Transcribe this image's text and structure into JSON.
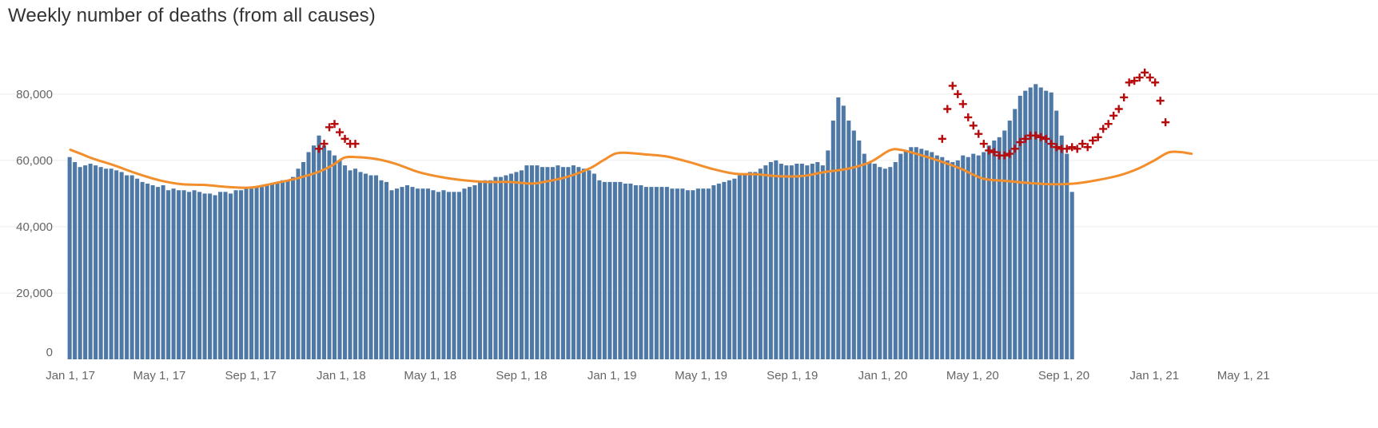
{
  "chart_data": {
    "type": "bar",
    "title": "Weekly number of deaths (from all causes)",
    "xlabel": "",
    "ylabel": "",
    "x_tick_labels": [
      "Jan 1, 17",
      "May 1, 17",
      "Sep 1, 17",
      "Jan 1, 18",
      "May 1, 18",
      "Sep 1, 18",
      "Jan 1, 19",
      "May 1, 19",
      "Sep 1, 19",
      "Jan 1, 20",
      "May 1, 20",
      "Sep 1, 20",
      "Jan 1, 21",
      "May 1, 21"
    ],
    "y_tick_labels": [
      "0",
      "20,000",
      "40,000",
      "60,000",
      "80,000"
    ],
    "y_ticks": [
      0,
      20000,
      40000,
      60000,
      80000
    ],
    "ylim": [
      0,
      92000
    ],
    "x_range": [
      "2016-12-19",
      "2021-05-10"
    ],
    "grid": true,
    "colors": {
      "bars": "#4e79a7",
      "expected_line": "#f28e2b",
      "excess_markers": "#b70a0a",
      "gridline": "#ececec",
      "text": "#333333",
      "tick_text": "#666666"
    },
    "series": [
      {
        "kind": "bar",
        "week_start": "2016-12-31",
        "interval_days": 7,
        "values": [
          61000,
          59500,
          58000,
          58500,
          59000,
          58500,
          58000,
          57500,
          57500,
          57000,
          56500,
          55500,
          55500,
          54500,
          53500,
          53000,
          52500,
          52000,
          52500,
          51000,
          51500,
          51000,
          51000,
          50500,
          51000,
          50500,
          50000,
          50000,
          49500,
          50500,
          50500,
          50000,
          51000,
          51000,
          51500,
          51500,
          52000,
          52000,
          52500,
          53000,
          53500,
          54000,
          54000,
          55000,
          57500,
          59500,
          62500,
          64500,
          67500,
          64500,
          63000,
          61500,
          60000,
          58500,
          57000,
          57500,
          56500,
          56000,
          55500,
          55500,
          54000,
          53500,
          51000,
          51500,
          52000,
          52500,
          52000,
          51500,
          51500,
          51500,
          51000,
          50500,
          51000,
          50500,
          50500,
          50500,
          51500,
          52000,
          52500,
          53500,
          54000,
          54000,
          55000,
          55000,
          55500,
          56000,
          56500,
          57000,
          58500,
          58500,
          58500,
          58000,
          58000,
          58000,
          58500,
          58000,
          58000,
          58500,
          58000,
          57500,
          57000,
          56000,
          54000,
          53500,
          53500,
          53500,
          53500,
          53000,
          53000,
          52500,
          52500,
          52000,
          52000,
          52000,
          52000,
          52000,
          51500,
          51500,
          51500,
          51000,
          51000,
          51500,
          51500,
          51500,
          52500,
          53000,
          53500,
          54000,
          54500,
          55500,
          56000,
          56500,
          56500,
          57500,
          58500,
          59500,
          60000,
          59000,
          58500,
          58500,
          59000,
          59000,
          58500,
          59000,
          59500,
          58500,
          63000,
          72000,
          79000,
          76500,
          72000,
          69000,
          66000,
          62000,
          59500,
          59000,
          58000,
          57500,
          58000,
          59500,
          62000,
          63000,
          64000,
          64000,
          63500,
          63000,
          62500,
          61500,
          61000,
          60000,
          59500,
          60000,
          61500,
          61000,
          62000,
          61500,
          62500,
          64500,
          66000,
          67000,
          69000,
          72000,
          75500,
          79500,
          81000,
          82000,
          83000,
          82000,
          81000,
          80500,
          75000,
          67500,
          62000,
          50500
        ]
      },
      {
        "kind": "line",
        "name": "",
        "points": [
          [
            "2017-01-01",
            63200
          ],
          [
            "2017-01-15",
            62000
          ],
          [
            "2017-02-01",
            60500
          ],
          [
            "2017-03-01",
            58500
          ],
          [
            "2017-04-01",
            56000
          ],
          [
            "2017-05-01",
            54000
          ],
          [
            "2017-06-01",
            52800
          ],
          [
            "2017-07-01",
            52600
          ],
          [
            "2017-08-01",
            52000
          ],
          [
            "2017-09-01",
            51800
          ],
          [
            "2017-10-01",
            53000
          ],
          [
            "2017-11-01",
            54500
          ],
          [
            "2017-12-01",
            56500
          ],
          [
            "2017-12-20",
            58500
          ],
          [
            "2018-01-05",
            60800
          ],
          [
            "2018-01-20",
            61000
          ],
          [
            "2018-02-15",
            60500
          ],
          [
            "2018-03-15",
            59000
          ],
          [
            "2018-04-15",
            56500
          ],
          [
            "2018-05-15",
            55000
          ],
          [
            "2018-06-15",
            54000
          ],
          [
            "2018-07-15",
            53500
          ],
          [
            "2018-08-15",
            53500
          ],
          [
            "2018-09-15",
            53000
          ],
          [
            "2018-10-01",
            53500
          ],
          [
            "2018-11-01",
            55000
          ],
          [
            "2018-12-01",
            57500
          ],
          [
            "2018-12-20",
            60000
          ],
          [
            "2019-01-05",
            62000
          ],
          [
            "2019-01-20",
            62300
          ],
          [
            "2019-02-15",
            61800
          ],
          [
            "2019-03-15",
            61200
          ],
          [
            "2019-04-15",
            59500
          ],
          [
            "2019-05-15",
            57500
          ],
          [
            "2019-06-15",
            56000
          ],
          [
            "2019-07-15",
            55800
          ],
          [
            "2019-08-15",
            55200
          ],
          [
            "2019-09-15",
            55300
          ],
          [
            "2019-10-15",
            56500
          ],
          [
            "2019-11-15",
            57500
          ],
          [
            "2019-12-15",
            59500
          ],
          [
            "2020-01-10",
            63000
          ],
          [
            "2020-01-25",
            63200
          ],
          [
            "2020-02-15",
            62000
          ],
          [
            "2020-03-15",
            60000
          ],
          [
            "2020-04-15",
            57500
          ],
          [
            "2020-05-15",
            54500
          ],
          [
            "2020-06-15",
            53800
          ],
          [
            "2020-07-15",
            53200
          ],
          [
            "2020-08-15",
            52800
          ],
          [
            "2020-09-15",
            53000
          ],
          [
            "2020-10-15",
            54000
          ],
          [
            "2020-11-15",
            55500
          ],
          [
            "2020-12-10",
            57500
          ],
          [
            "2021-01-01",
            60000
          ],
          [
            "2021-01-20",
            62400
          ],
          [
            "2021-02-05",
            62500
          ],
          [
            "2021-02-20",
            62000
          ]
        ]
      },
      {
        "kind": "markers",
        "name": "",
        "marker": "cross",
        "points": [
          [
            "2017-12-02",
            63500
          ],
          [
            "2017-12-09",
            65000
          ],
          [
            "2017-12-16",
            70000
          ],
          [
            "2017-12-23",
            71000
          ],
          [
            "2017-12-30",
            68500
          ],
          [
            "2018-01-06",
            66500
          ],
          [
            "2018-01-13",
            65000
          ],
          [
            "2018-01-20",
            65000
          ],
          [
            "2020-03-21",
            66500
          ],
          [
            "2020-03-28",
            75500
          ],
          [
            "2020-04-04",
            82500
          ],
          [
            "2020-04-11",
            80000
          ],
          [
            "2020-04-18",
            77000
          ],
          [
            "2020-04-25",
            73000
          ],
          [
            "2020-05-02",
            70500
          ],
          [
            "2020-05-09",
            68000
          ],
          [
            "2020-05-16",
            65000
          ],
          [
            "2020-05-23",
            63000
          ],
          [
            "2020-05-30",
            62500
          ],
          [
            "2020-06-06",
            61500
          ],
          [
            "2020-06-13",
            61500
          ],
          [
            "2020-06-20",
            62000
          ],
          [
            "2020-06-27",
            63500
          ],
          [
            "2020-07-04",
            65500
          ],
          [
            "2020-07-11",
            66500
          ],
          [
            "2020-07-18",
            67500
          ],
          [
            "2020-07-25",
            67500
          ],
          [
            "2020-08-01",
            67000
          ],
          [
            "2020-08-08",
            66500
          ],
          [
            "2020-08-15",
            65000
          ],
          [
            "2020-08-22",
            64000
          ],
          [
            "2020-08-29",
            63500
          ],
          [
            "2020-09-05",
            63500
          ],
          [
            "2020-09-12",
            64000
          ],
          [
            "2020-09-19",
            63500
          ],
          [
            "2020-09-26",
            65000
          ],
          [
            "2020-10-03",
            64000
          ],
          [
            "2020-10-10",
            66000
          ],
          [
            "2020-10-17",
            67000
          ],
          [
            "2020-10-24",
            69500
          ],
          [
            "2020-10-31",
            71000
          ],
          [
            "2020-11-07",
            73500
          ],
          [
            "2020-11-14",
            75500
          ],
          [
            "2020-11-21",
            79000
          ],
          [
            "2020-11-28",
            83500
          ],
          [
            "2020-12-05",
            84000
          ],
          [
            "2020-12-12",
            85000
          ],
          [
            "2020-12-19",
            86500
          ],
          [
            "2020-12-26",
            85000
          ],
          [
            "2021-01-02",
            83500
          ],
          [
            "2021-01-09",
            78000
          ],
          [
            "2021-01-16",
            71500
          ]
        ]
      }
    ]
  }
}
